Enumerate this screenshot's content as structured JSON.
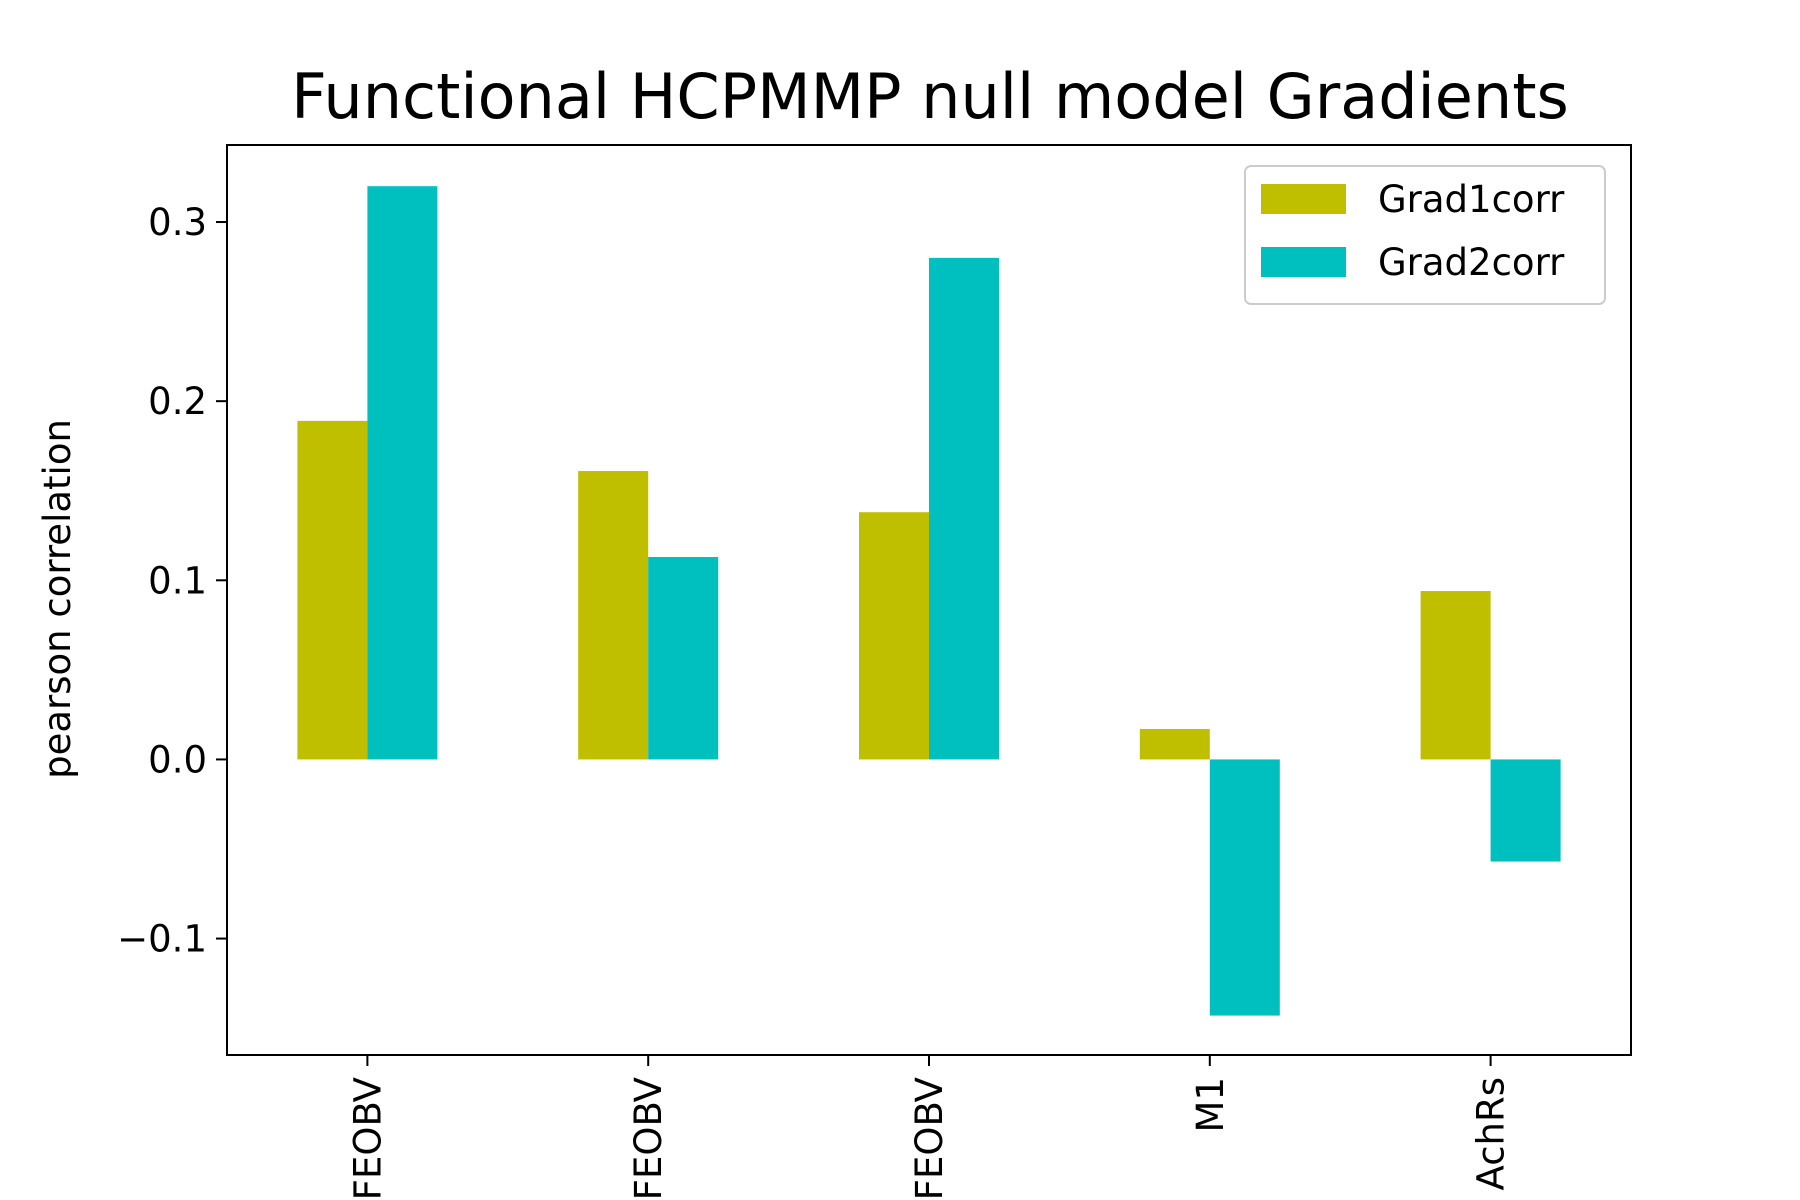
{
  "chart_data": {
    "type": "bar",
    "title": "Functional HCPMMP null model Gradients",
    "xlabel": "",
    "ylabel": "pearson correlation",
    "categories": [
      "FEOBV",
      "FEOBV",
      "FEOBV",
      "M1",
      "AchRs"
    ],
    "series": [
      {
        "name": "Grad1corr",
        "color": "#bfbf00",
        "values": [
          0.189,
          0.161,
          0.138,
          0.017,
          0.094
        ]
      },
      {
        "name": "Grad2corr",
        "color": "#00bfbf",
        "values": [
          0.32,
          0.113,
          0.28,
          -0.143,
          -0.057
        ]
      }
    ],
    "ylim": [
      -0.165,
      0.343
    ],
    "yticks": [
      -0.1,
      0.0,
      0.1,
      0.2,
      0.3
    ],
    "ytick_labels": [
      "−0.1",
      "0.0",
      "0.1",
      "0.2",
      "0.3"
    ],
    "grid": false,
    "legend_position": "top-right"
  }
}
